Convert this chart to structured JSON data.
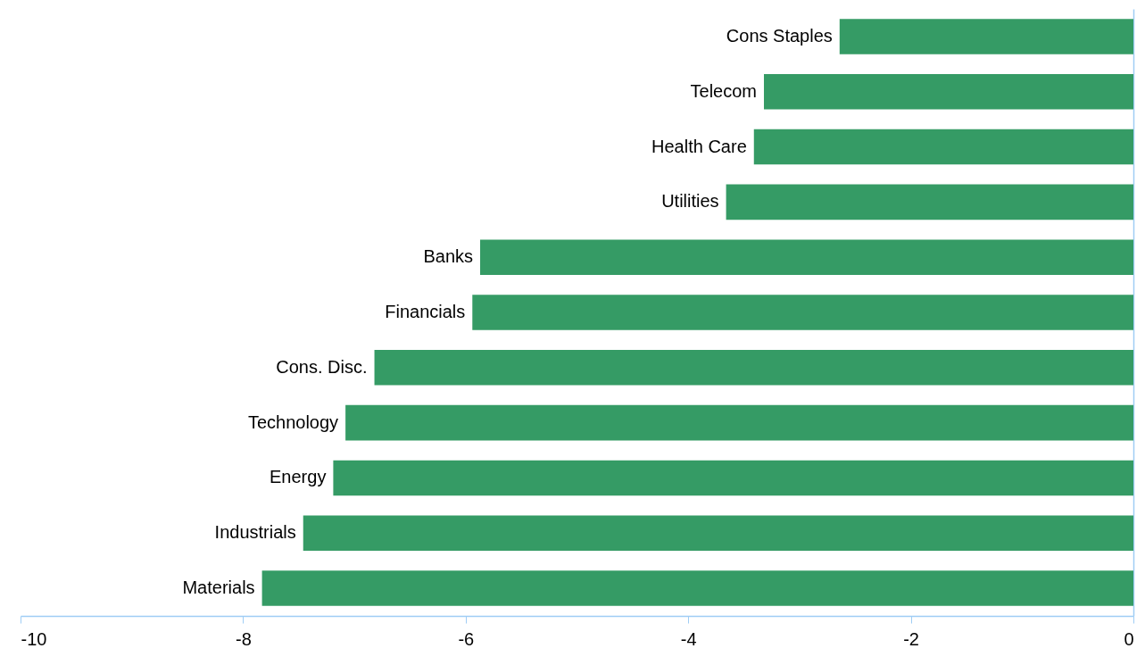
{
  "chart_data": {
    "type": "bar",
    "orientation": "horizontal",
    "categories": [
      "Cons Staples",
      "Telecom",
      "Health Care",
      "Utilities",
      "Banks",
      "Financials",
      "Cons. Disc.",
      "Technology",
      "Energy",
      "Industrials",
      "Materials"
    ],
    "values": [
      -2.64,
      -3.32,
      -3.41,
      -3.66,
      -5.87,
      -5.94,
      -6.82,
      -7.08,
      -7.19,
      -7.46,
      -7.83
    ],
    "color": "#359b65",
    "xlim": [
      -10,
      0
    ],
    "xticks": [
      -10,
      -8,
      -6,
      -4,
      -2,
      0
    ],
    "grid": false
  }
}
